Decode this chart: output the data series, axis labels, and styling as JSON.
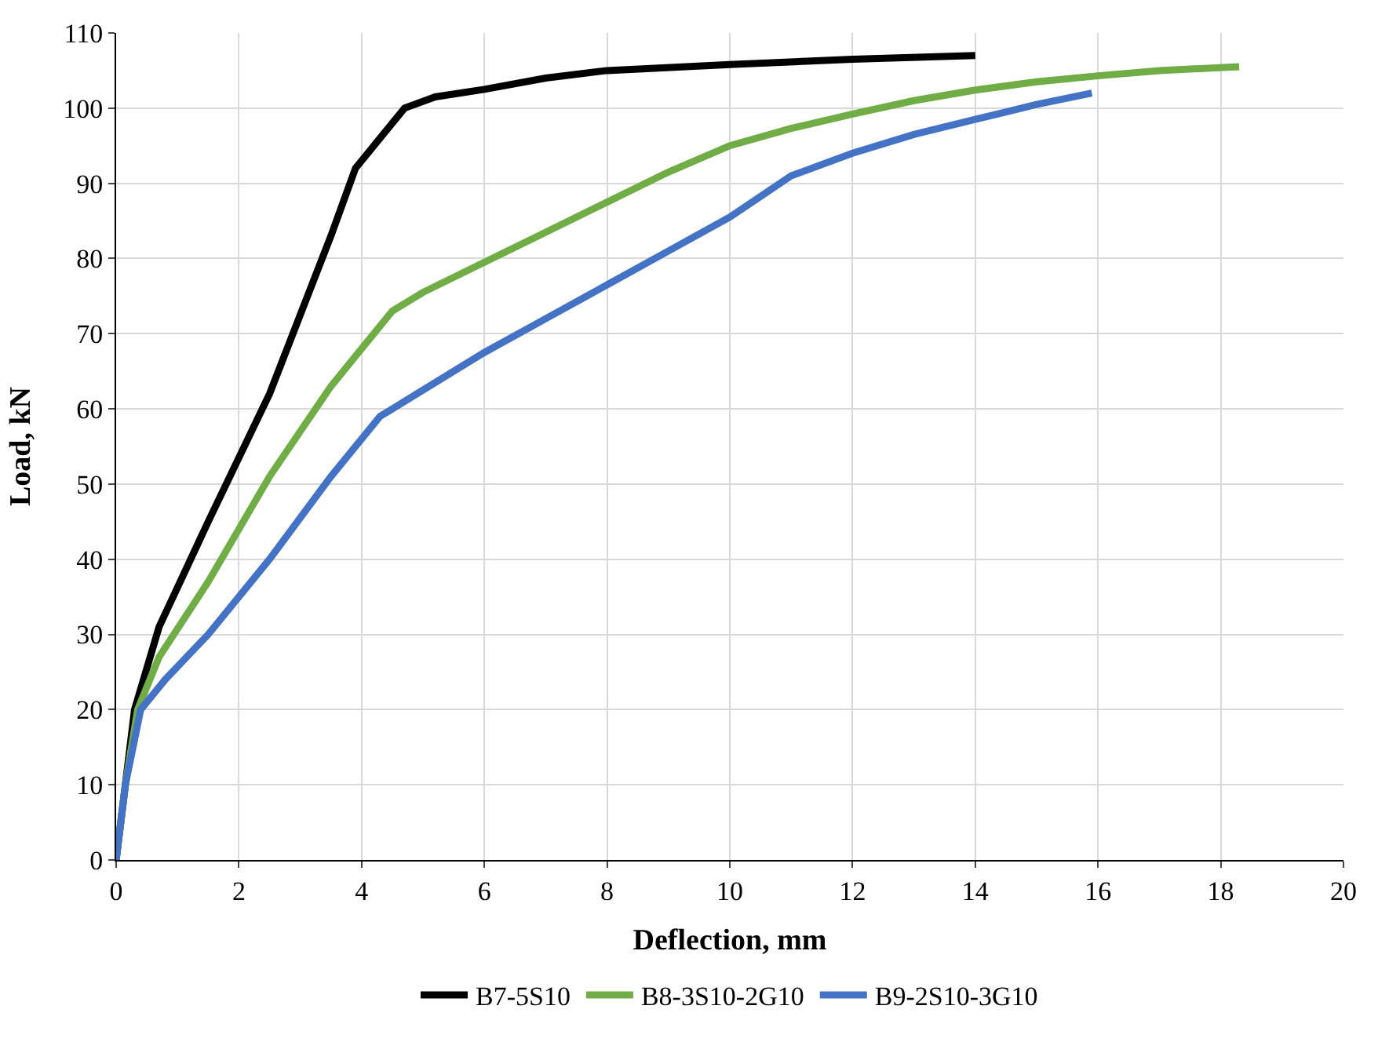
{
  "chart_data": {
    "type": "line",
    "xlabel": "Deflection, mm",
    "ylabel": "Load, kN",
    "xlim": [
      0,
      20
    ],
    "xticks": [
      0,
      2,
      4,
      6,
      8,
      10,
      12,
      14,
      16,
      18,
      20
    ],
    "ylim": [
      0,
      110
    ],
    "yticks": [
      0,
      10,
      20,
      30,
      40,
      50,
      60,
      70,
      80,
      90,
      100,
      110
    ],
    "grid": true,
    "legend": "bottom",
    "marker": "none",
    "line_style": "solid",
    "series": [
      {
        "name": "B7-5S10",
        "color": "#000000",
        "x": [
          0,
          0.15,
          0.3,
          0.7,
          1.5,
          2.5,
          3.5,
          3.9,
          4.3,
          4.7,
          5.2,
          6,
          7,
          8,
          10,
          12,
          14
        ],
        "values": [
          0,
          10,
          20,
          31,
          45,
          62,
          83,
          92,
          96,
          100,
          101.5,
          102.5,
          104,
          105,
          105.8,
          106.5,
          107
        ]
      },
      {
        "name": "B8-3S10-2G10",
        "color": "#70ad47",
        "x": [
          0,
          0.15,
          0.35,
          0.7,
          1.5,
          2.5,
          3.5,
          4.0,
          4.5,
          5,
          6,
          7,
          8,
          9,
          10,
          11,
          12,
          13,
          14,
          15,
          16,
          17,
          18.3
        ],
        "values": [
          0,
          10,
          20,
          27,
          37,
          51,
          63,
          68,
          73,
          75.5,
          79.5,
          83.5,
          87.5,
          91.5,
          95,
          97.3,
          99.2,
          101,
          102.4,
          103.5,
          104.3,
          105,
          105.5
        ]
      },
      {
        "name": "B9-2S10-3G10",
        "color": "#4472c4",
        "x": [
          0,
          0.15,
          0.4,
          0.8,
          1.5,
          2.5,
          3.5,
          4.3,
          5,
          6,
          7,
          8,
          9,
          10,
          11,
          12,
          13,
          14,
          15,
          15.9
        ],
        "values": [
          0,
          10,
          20,
          24,
          30,
          40,
          51,
          59,
          62.5,
          67.5,
          72,
          76.5,
          81,
          85.5,
          91,
          94,
          96.5,
          98.5,
          100.5,
          102
        ]
      }
    ]
  }
}
